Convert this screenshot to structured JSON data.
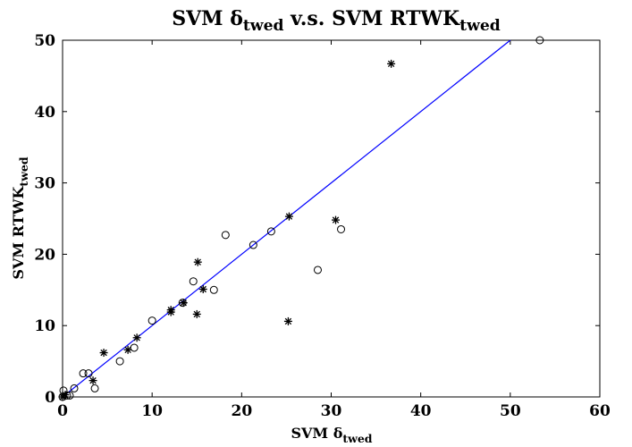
{
  "chart_data": {
    "type": "scatter",
    "title": {
      "main": "SVM δ",
      "main_sub": "twed",
      "mid": " v.s. SVM RTWK",
      "end_sub": "twed"
    },
    "xlabel": {
      "main": "SVM δ",
      "sub": "twed"
    },
    "ylabel": {
      "main": "SVM RTWK",
      "sub": "twed"
    },
    "xlim": [
      0,
      60
    ],
    "ylim": [
      0,
      50
    ],
    "xticks": [
      "0",
      "10",
      "20",
      "30",
      "40",
      "50",
      "60"
    ],
    "yticks": [
      "0",
      "10",
      "20",
      "30",
      "40",
      "50"
    ],
    "grid": false,
    "reference_line": {
      "from": [
        0,
        0
      ],
      "to": [
        50,
        50
      ],
      "color": "#0000ff"
    },
    "series": [
      {
        "marker": "circle",
        "points": [
          [
            53.3,
            50.0
          ],
          [
            0.1,
            0.9
          ],
          [
            0.0,
            0.0
          ],
          [
            0.5,
            0.2
          ],
          [
            0.8,
            0.2
          ],
          [
            1.3,
            1.2
          ],
          [
            2.3,
            3.3
          ],
          [
            2.9,
            3.3
          ],
          [
            3.6,
            1.2
          ],
          [
            6.4,
            5.0
          ],
          [
            8.0,
            6.9
          ],
          [
            10.0,
            10.7
          ],
          [
            13.4,
            13.2
          ],
          [
            14.6,
            16.2
          ],
          [
            16.9,
            15.0
          ],
          [
            18.2,
            22.7
          ],
          [
            21.3,
            21.3
          ],
          [
            23.3,
            23.2
          ],
          [
            28.5,
            17.8
          ],
          [
            31.1,
            23.5
          ]
        ]
      },
      {
        "marker": "star",
        "points": [
          [
            36.7,
            46.7
          ],
          [
            0.0,
            0.0
          ],
          [
            0.3,
            0.3
          ],
          [
            3.4,
            2.3
          ],
          [
            4.6,
            6.2
          ],
          [
            7.3,
            6.6
          ],
          [
            8.3,
            8.3
          ],
          [
            12.1,
            12.2
          ],
          [
            12.1,
            11.9
          ],
          [
            13.5,
            13.2
          ],
          [
            15.1,
            18.9
          ],
          [
            15.7,
            15.1
          ],
          [
            15.0,
            11.6
          ],
          [
            25.3,
            25.3
          ],
          [
            30.5,
            24.8
          ],
          [
            25.2,
            10.6
          ]
        ]
      }
    ]
  }
}
